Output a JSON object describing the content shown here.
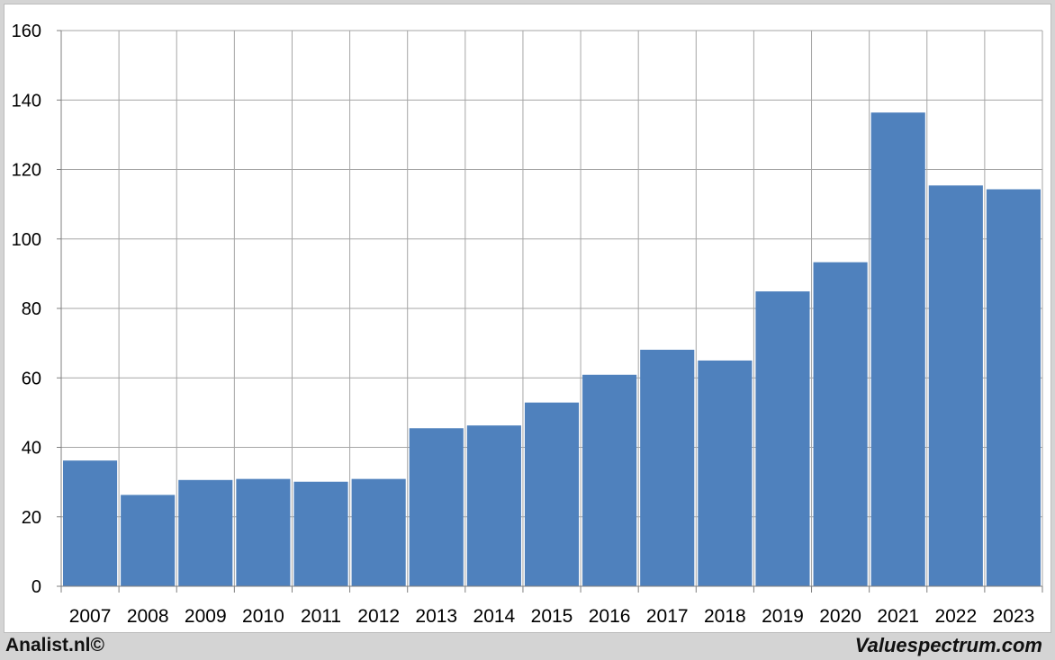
{
  "chart_data": {
    "type": "bar",
    "categories": [
      "2007",
      "2008",
      "2009",
      "2010",
      "2011",
      "2012",
      "2013",
      "2014",
      "2015",
      "2016",
      "2017",
      "2018",
      "2019",
      "2020",
      "2021",
      "2022",
      "2023"
    ],
    "values": [
      36.2,
      26.3,
      30.6,
      30.9,
      30.1,
      30.9,
      45.5,
      46.3,
      52.9,
      60.9,
      68.1,
      65.0,
      84.9,
      93.3,
      136.4,
      115.4,
      114.3
    ],
    "ylim": [
      0,
      160
    ],
    "yticks": [
      0,
      20,
      40,
      60,
      80,
      100,
      120,
      140,
      160
    ],
    "grid": true,
    "bar_color": "#4f81bd",
    "gridline_color": "#a6a6a6"
  },
  "footer": {
    "left_text": "Analist.nl©",
    "right_text": "Valuespectrum.com"
  }
}
